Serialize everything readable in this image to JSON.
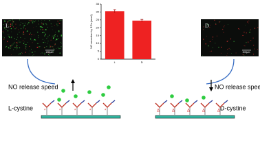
{
  "chart_data": {
    "type": "bar",
    "ylabel": "NO secretion by ECs (nmol)",
    "categories": [
      "L",
      "D"
    ],
    "values": [
      30.5,
      24.5
    ],
    "errors": [
      1,
      0.8
    ],
    "color": "#ee2222",
    "ylim": [
      0,
      35
    ],
    "yticks": [
      0,
      5,
      10,
      15,
      20,
      25,
      30,
      35
    ]
  },
  "micrographs": [
    {
      "label": "L",
      "scale": "200μm"
    },
    {
      "label": "D",
      "scale": "200μm"
    }
  ],
  "schemes": [
    {
      "caption": "NO release speed",
      "name": "L-cystine"
    },
    {
      "caption": "NO release speed",
      "name": "D-cystine"
    }
  ]
}
